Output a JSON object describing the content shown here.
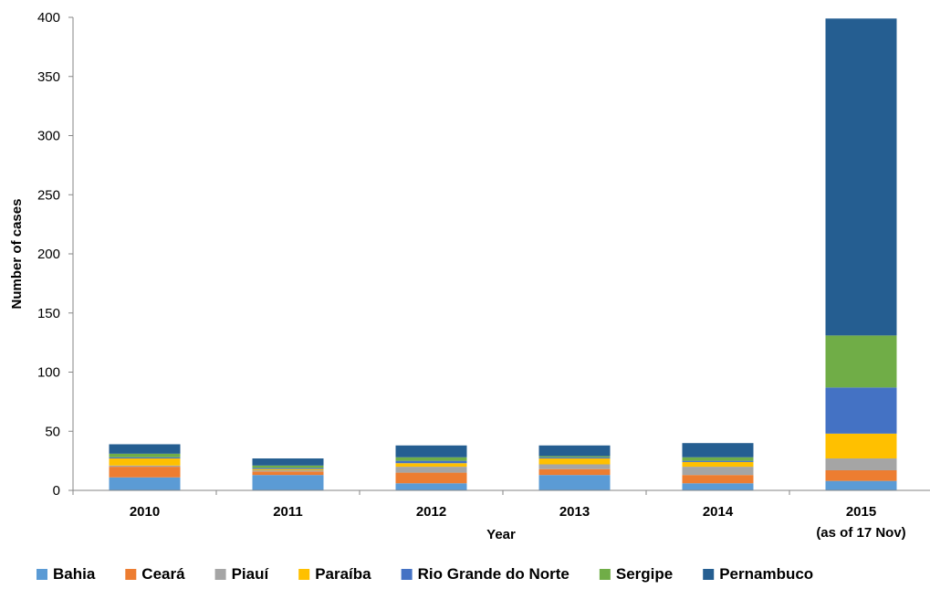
{
  "chart_data": {
    "type": "bar",
    "stacked": true,
    "xlabel": "Year",
    "ylabel": "Number of cases",
    "ylim": [
      0,
      400
    ],
    "yticks": [
      0,
      50,
      100,
      150,
      200,
      250,
      300,
      350,
      400
    ],
    "grid": false,
    "legend_position": "bottom",
    "categories": [
      {
        "label": "2010",
        "sublabel": ""
      },
      {
        "label": "2011",
        "sublabel": ""
      },
      {
        "label": "2012",
        "sublabel": ""
      },
      {
        "label": "2013",
        "sublabel": ""
      },
      {
        "label": "2014",
        "sublabel": ""
      },
      {
        "label": "2015",
        "sublabel": "(as of 17 Nov)"
      }
    ],
    "series": [
      {
        "name": "Bahia",
        "color": "#5B9BD5",
        "values": [
          11,
          13,
          6,
          13,
          6,
          8
        ]
      },
      {
        "name": "Ceará",
        "color": "#ED7D31",
        "values": [
          9,
          3,
          9,
          5,
          7,
          9
        ]
      },
      {
        "name": "Piauí",
        "color": "#A5A5A5",
        "values": [
          1,
          1,
          5,
          4,
          7,
          10
        ]
      },
      {
        "name": "Paraíba",
        "color": "#FFC000",
        "values": [
          6,
          1,
          3,
          5,
          4,
          21
        ]
      },
      {
        "name": "Rio Grande do Norte",
        "color": "#4472C4",
        "values": [
          1,
          1,
          2,
          1,
          1,
          39
        ]
      },
      {
        "name": "Sergipe",
        "color": "#70AD47",
        "values": [
          3,
          2,
          3,
          1,
          3,
          44
        ]
      },
      {
        "name": "Pernambuco",
        "color": "#255E91",
        "values": [
          8,
          6,
          10,
          9,
          12,
          268
        ]
      }
    ]
  }
}
